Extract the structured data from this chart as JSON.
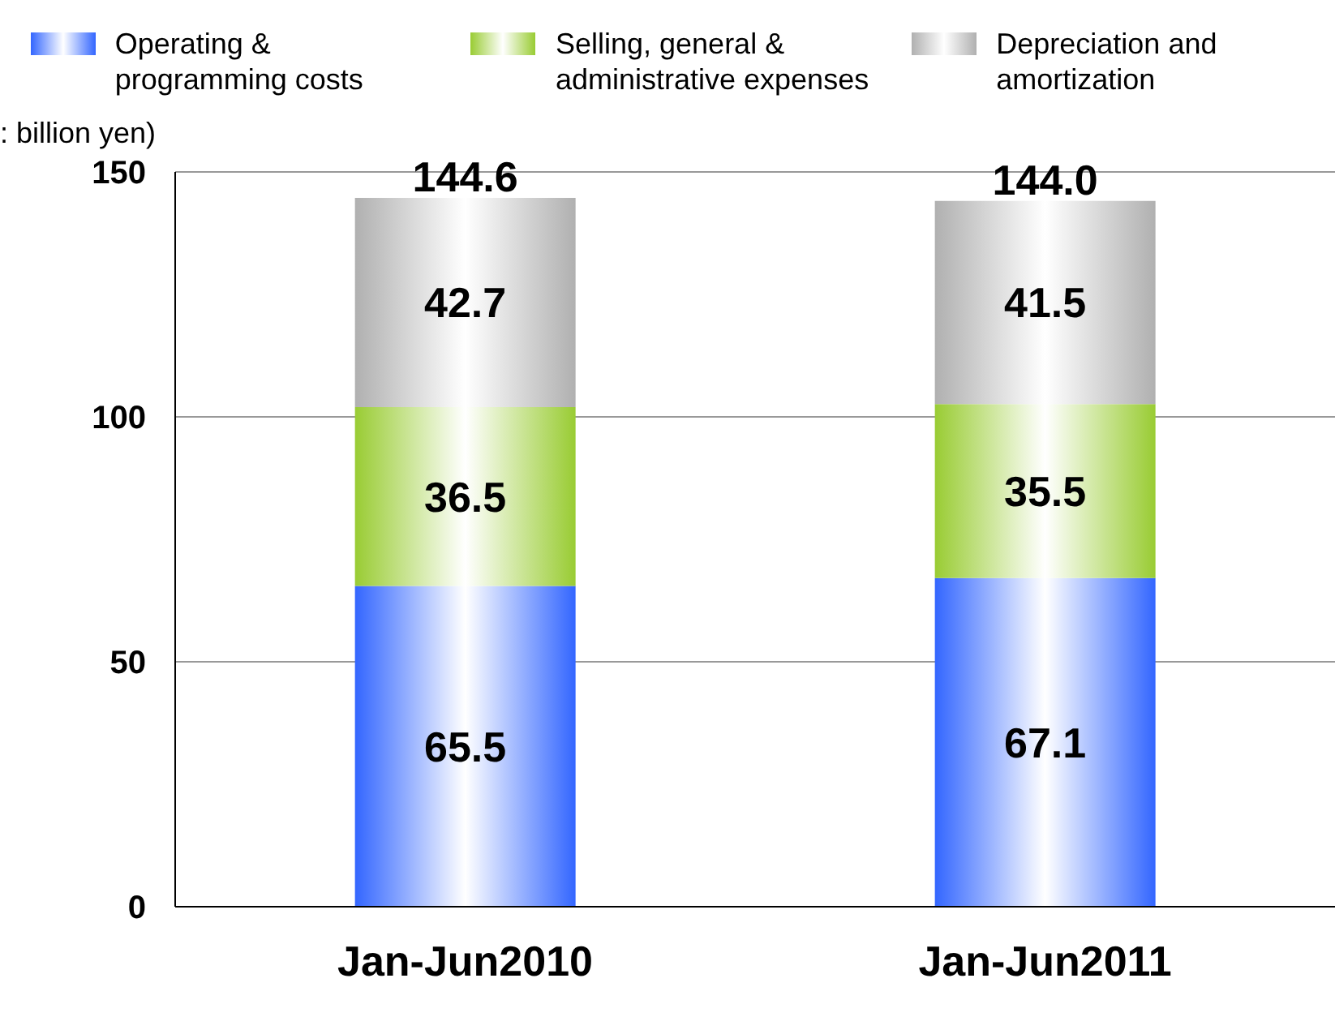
{
  "chart_data": {
    "type": "bar",
    "stacked": true,
    "ylabel": ": billion yen)",
    "categories": [
      "Jan-Jun2010",
      "Jan-Jun2011"
    ],
    "series": [
      {
        "name": "Operating & programming costs",
        "color": "#3366ff",
        "values": [
          65.5,
          67.1
        ]
      },
      {
        "name": "Selling, general & administrative expenses",
        "color": "#99cc33",
        "values": [
          36.5,
          35.5
        ]
      },
      {
        "name": "Depreciation and amortization",
        "color": "#b0b0b0",
        "values": [
          42.7,
          41.5
        ]
      }
    ],
    "totals": [
      "144.6",
      "144.0"
    ],
    "data_labels": true,
    "ylim": [
      0,
      150
    ],
    "yticks": [
      0,
      50,
      100,
      150
    ],
    "grid": "y",
    "legend": "top"
  }
}
